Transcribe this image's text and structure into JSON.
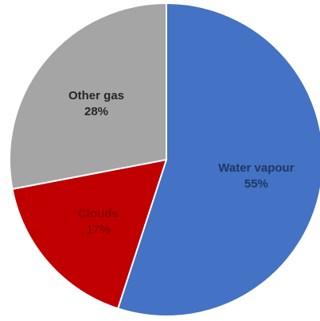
{
  "chart_data": {
    "type": "pie",
    "slices": [
      {
        "label": "Water vapour",
        "value": 55,
        "value_label": "55%",
        "color": "#4472C4",
        "label_color": "#1F3864"
      },
      {
        "label": "Clouds",
        "value": 17,
        "value_label": "17%",
        "color": "#C00000",
        "label_color": "#8B0000"
      },
      {
        "label": "Other gas",
        "value": 28,
        "value_label": "28%",
        "color": "#A5A5A5",
        "label_color": "#262626"
      }
    ],
    "start_angle_deg": 0,
    "direction": "clockwise",
    "legend": "none"
  }
}
